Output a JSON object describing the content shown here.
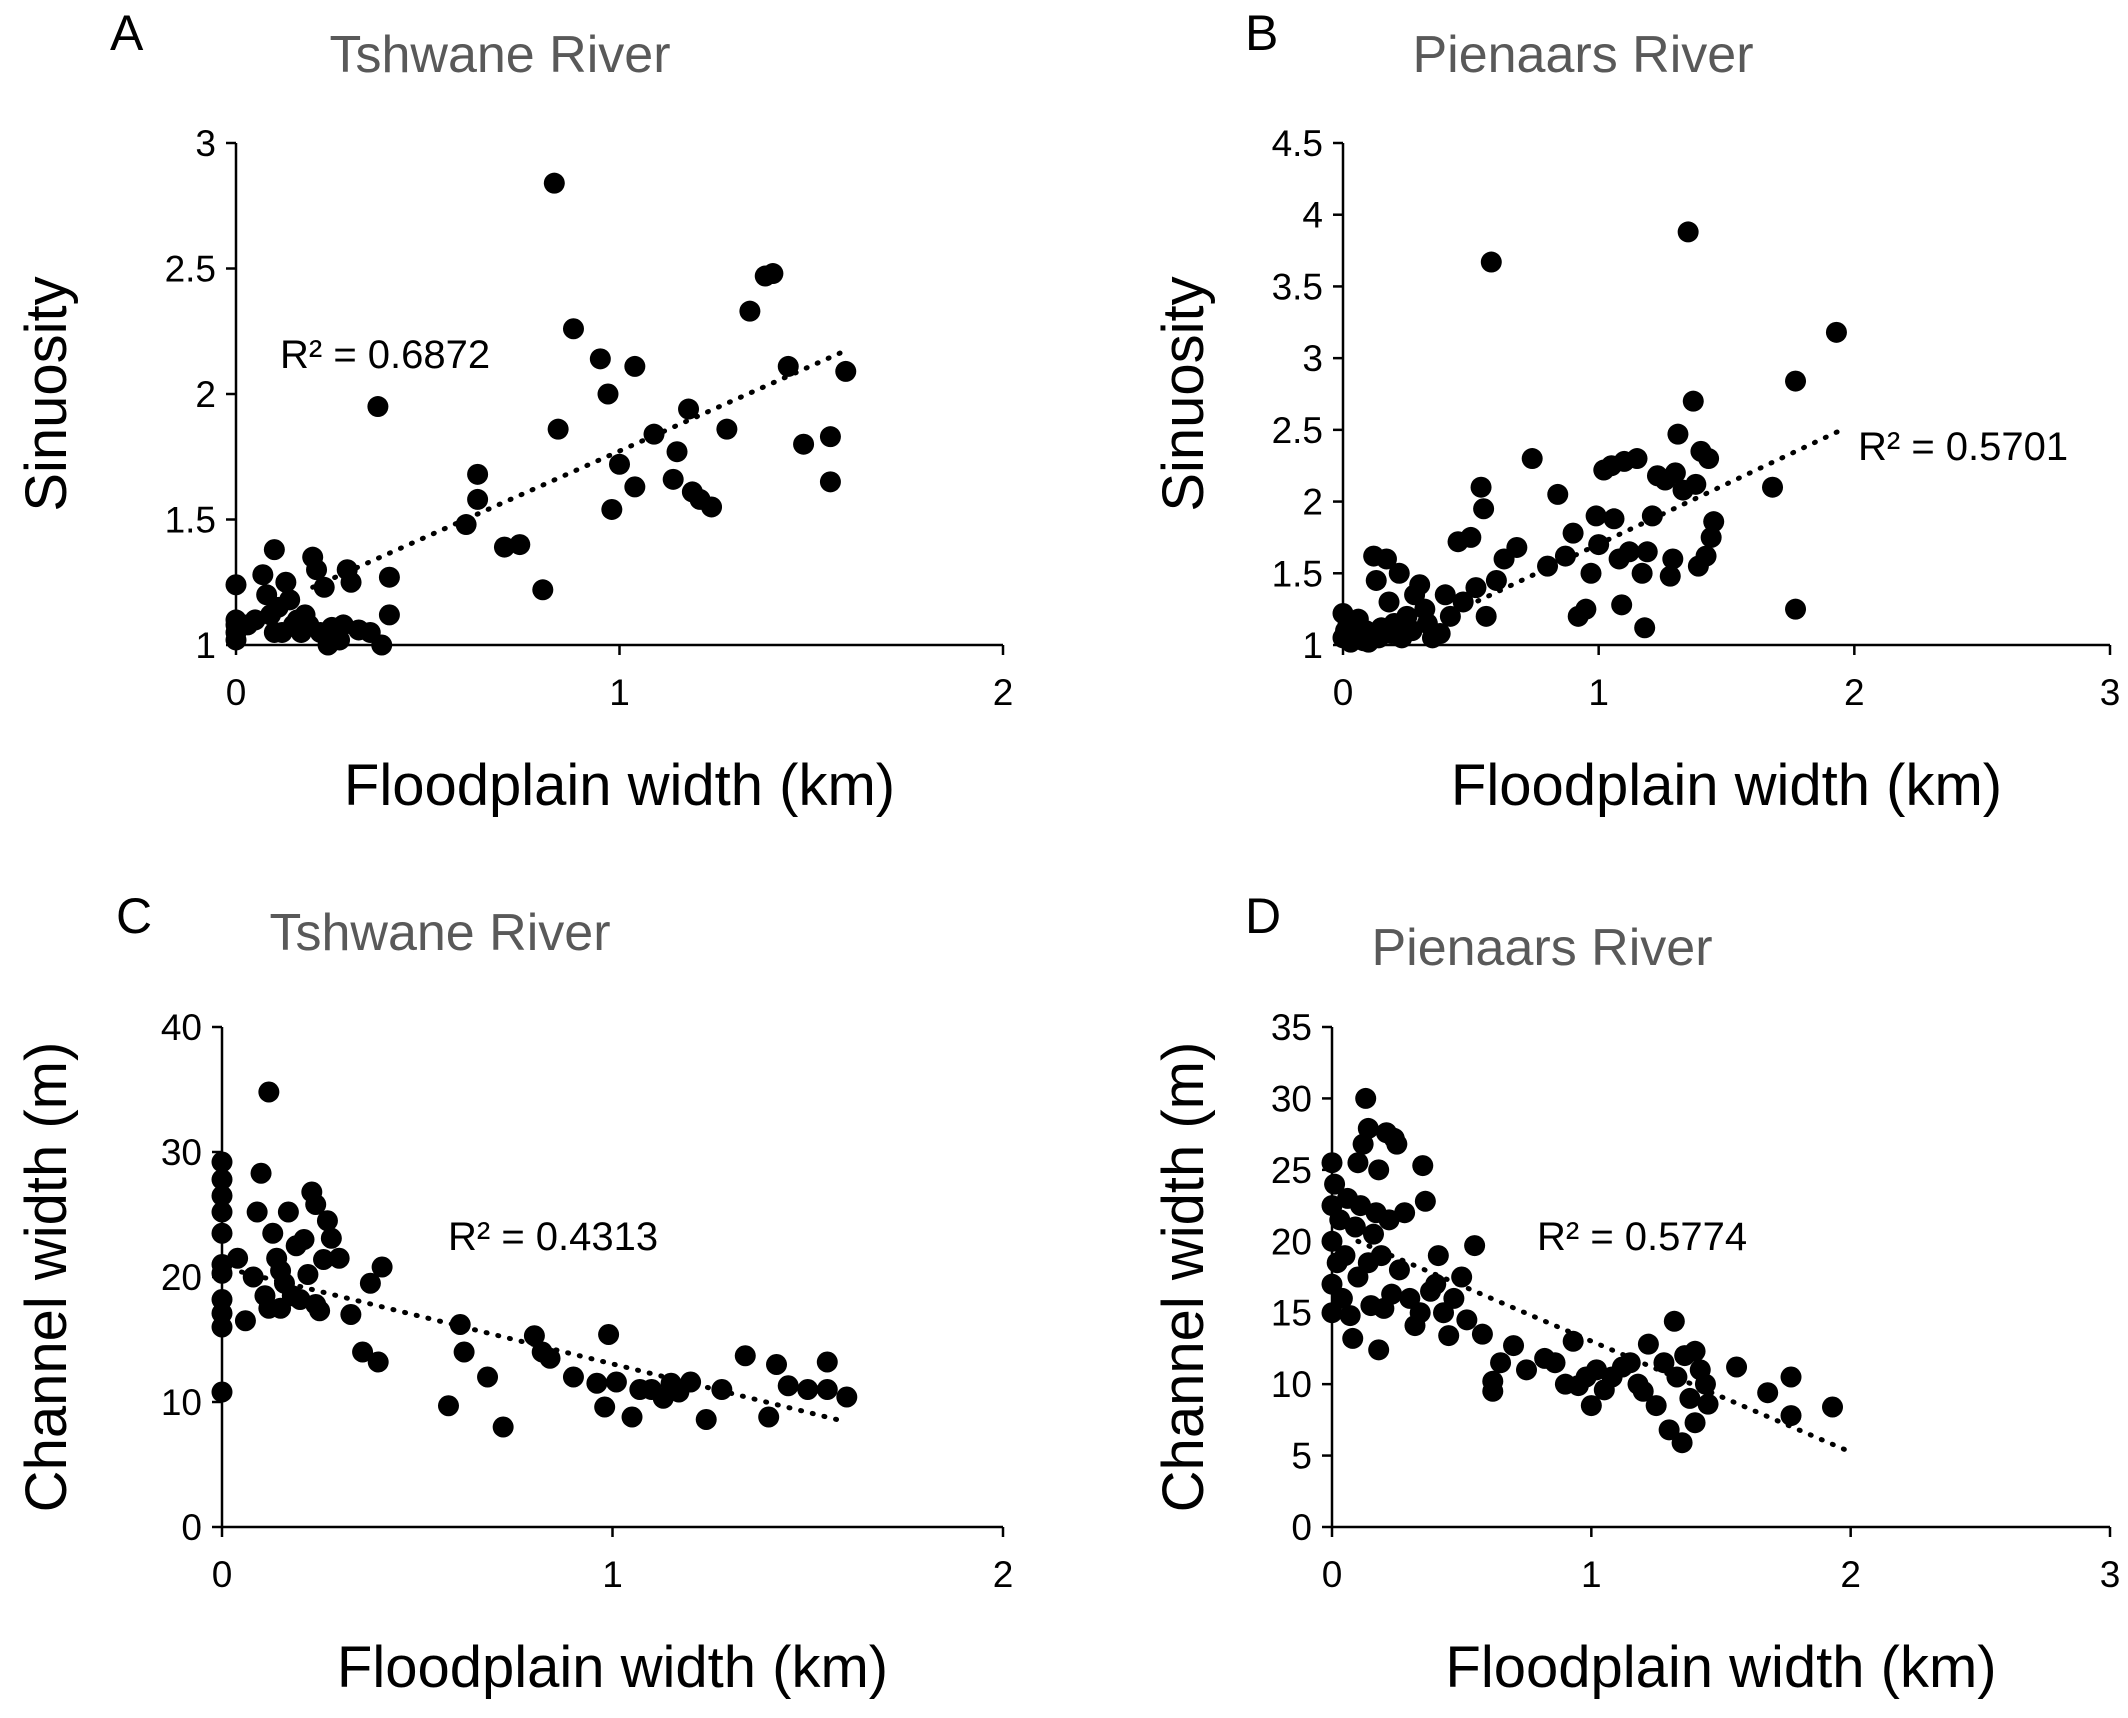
{
  "chart_data": [
    {
      "type": "scatter",
      "panel_label": "A",
      "title": "Tshwane River",
      "xlabel": "Floodplain width (km)",
      "ylabel": "Sinuosity",
      "xlim": [
        0,
        2
      ],
      "ylim": [
        1,
        3
      ],
      "xticks": [
        "0",
        "1",
        "2"
      ],
      "yticks": [
        "1",
        "1.5",
        "2",
        "2.5",
        "3"
      ],
      "grid": false,
      "legend": "none",
      "annotation": "R² = 0.6872",
      "trendline": {
        "style": "dotted",
        "x": [
          0.2,
          1.6
        ],
        "y": [
          1.23,
          2.18
        ]
      },
      "points": [
        [
          0.0,
          1.24
        ],
        [
          0.0,
          1.1
        ],
        [
          0.0,
          1.05
        ],
        [
          0.0,
          1.02
        ],
        [
          0.0,
          1.08
        ],
        [
          0.03,
          1.08
        ],
        [
          0.05,
          1.1
        ],
        [
          0.07,
          1.28
        ],
        [
          0.08,
          1.2
        ],
        [
          0.09,
          1.12
        ],
        [
          0.1,
          1.05
        ],
        [
          0.1,
          1.38
        ],
        [
          0.11,
          1.15
        ],
        [
          0.12,
          1.05
        ],
        [
          0.13,
          1.25
        ],
        [
          0.14,
          1.18
        ],
        [
          0.15,
          1.08
        ],
        [
          0.16,
          1.1
        ],
        [
          0.17,
          1.05
        ],
        [
          0.18,
          1.12
        ],
        [
          0.19,
          1.08
        ],
        [
          0.2,
          1.35
        ],
        [
          0.21,
          1.3
        ],
        [
          0.22,
          1.05
        ],
        [
          0.23,
          1.23
        ],
        [
          0.24,
          1.0
        ],
        [
          0.25,
          1.07
        ],
        [
          0.26,
          1.05
        ],
        [
          0.27,
          1.02
        ],
        [
          0.28,
          1.08
        ],
        [
          0.29,
          1.3
        ],
        [
          0.3,
          1.25
        ],
        [
          0.32,
          1.06
        ],
        [
          0.35,
          1.05
        ],
        [
          0.37,
          1.95
        ],
        [
          0.38,
          1.0
        ],
        [
          0.4,
          1.27
        ],
        [
          0.4,
          1.12
        ],
        [
          0.6,
          1.48
        ],
        [
          0.63,
          1.58
        ],
        [
          0.63,
          1.68
        ],
        [
          0.7,
          1.39
        ],
        [
          0.74,
          1.4
        ],
        [
          0.8,
          1.22
        ],
        [
          0.83,
          2.84
        ],
        [
          0.84,
          1.86
        ],
        [
          0.88,
          2.26
        ],
        [
          0.95,
          2.14
        ],
        [
          0.97,
          2.0
        ],
        [
          0.98,
          1.54
        ],
        [
          1.0,
          1.72
        ],
        [
          1.04,
          2.11
        ],
        [
          1.04,
          1.63
        ],
        [
          1.09,
          1.84
        ],
        [
          1.14,
          1.66
        ],
        [
          1.15,
          1.77
        ],
        [
          1.18,
          1.94
        ],
        [
          1.19,
          1.61
        ],
        [
          1.21,
          1.58
        ],
        [
          1.24,
          1.55
        ],
        [
          1.28,
          1.86
        ],
        [
          1.34,
          2.33
        ],
        [
          1.38,
          2.47
        ],
        [
          1.4,
          2.48
        ],
        [
          1.44,
          2.11
        ],
        [
          1.48,
          1.8
        ],
        [
          1.55,
          1.83
        ],
        [
          1.55,
          1.65
        ],
        [
          1.59,
          2.09
        ]
      ]
    },
    {
      "type": "scatter",
      "panel_label": "B",
      "title": "Pienaars River",
      "xlabel": "Floodplain width (km)",
      "ylabel": "Sinuosity",
      "xlim": [
        0,
        3
      ],
      "ylim": [
        1,
        4.5
      ],
      "xticks": [
        "0",
        "1",
        "2",
        "3"
      ],
      "yticks": [
        "1",
        "1.5",
        "2",
        "2.5",
        "3",
        "3.5",
        "4",
        "4.5"
      ],
      "grid": false,
      "legend": "none",
      "annotation": "R² = 0.5701",
      "trendline": {
        "style": "dotted",
        "x": [
          0.4,
          1.95
        ],
        "y": [
          1.2,
          2.5
        ]
      },
      "points": [
        [
          0.0,
          1.22
        ],
        [
          0.0,
          1.05
        ],
        [
          0.01,
          1.1
        ],
        [
          0.02,
          1.15
        ],
        [
          0.03,
          1.02
        ],
        [
          0.04,
          1.08
        ],
        [
          0.05,
          1.12
        ],
        [
          0.06,
          1.18
        ],
        [
          0.07,
          1.05
        ],
        [
          0.08,
          1.03
        ],
        [
          0.09,
          1.1
        ],
        [
          0.1,
          1.02
        ],
        [
          0.11,
          1.08
        ],
        [
          0.12,
          1.62
        ],
        [
          0.13,
          1.45
        ],
        [
          0.14,
          1.05
        ],
        [
          0.15,
          1.12
        ],
        [
          0.17,
          1.6
        ],
        [
          0.18,
          1.3
        ],
        [
          0.19,
          1.08
        ],
        [
          0.2,
          1.15
        ],
        [
          0.22,
          1.5
        ],
        [
          0.23,
          1.05
        ],
        [
          0.25,
          1.2
        ],
        [
          0.27,
          1.1
        ],
        [
          0.28,
          1.35
        ],
        [
          0.3,
          1.42
        ],
        [
          0.32,
          1.25
        ],
        [
          0.33,
          1.15
        ],
        [
          0.35,
          1.05
        ],
        [
          0.38,
          1.08
        ],
        [
          0.4,
          1.35
        ],
        [
          0.42,
          1.2
        ],
        [
          0.45,
          1.72
        ],
        [
          0.47,
          1.3
        ],
        [
          0.5,
          1.75
        ],
        [
          0.52,
          1.4
        ],
        [
          0.54,
          2.1
        ],
        [
          0.55,
          1.95
        ],
        [
          0.56,
          1.2
        ],
        [
          0.58,
          3.67
        ],
        [
          0.6,
          1.45
        ],
        [
          0.63,
          1.6
        ],
        [
          0.68,
          1.68
        ],
        [
          0.74,
          2.3
        ],
        [
          0.8,
          1.55
        ],
        [
          0.84,
          2.05
        ],
        [
          0.87,
          1.62
        ],
        [
          0.9,
          1.78
        ],
        [
          0.92,
          1.2
        ],
        [
          0.95,
          1.25
        ],
        [
          0.97,
          1.5
        ],
        [
          0.99,
          1.9
        ],
        [
          1.0,
          1.7
        ],
        [
          1.02,
          2.22
        ],
        [
          1.05,
          2.25
        ],
        [
          1.06,
          1.88
        ],
        [
          1.08,
          1.6
        ],
        [
          1.09,
          1.28
        ],
        [
          1.1,
          2.28
        ],
        [
          1.12,
          1.65
        ],
        [
          1.15,
          2.3
        ],
        [
          1.17,
          1.5
        ],
        [
          1.18,
          1.12
        ],
        [
          1.19,
          1.65
        ],
        [
          1.21,
          1.9
        ],
        [
          1.23,
          2.18
        ],
        [
          1.26,
          2.15
        ],
        [
          1.28,
          1.48
        ],
        [
          1.29,
          1.6
        ],
        [
          1.3,
          2.2
        ],
        [
          1.31,
          2.47
        ],
        [
          1.33,
          2.08
        ],
        [
          1.35,
          3.88
        ],
        [
          1.37,
          2.7
        ],
        [
          1.38,
          2.12
        ],
        [
          1.39,
          1.55
        ],
        [
          1.4,
          2.35
        ],
        [
          1.42,
          1.62
        ],
        [
          1.43,
          2.3
        ],
        [
          1.44,
          1.75
        ],
        [
          1.45,
          1.86
        ],
        [
          1.68,
          2.1
        ],
        [
          1.77,
          2.84
        ],
        [
          1.77,
          1.25
        ],
        [
          1.93,
          3.18
        ]
      ]
    },
    {
      "type": "scatter",
      "panel_label": "C",
      "title": "Tshwane River",
      "xlabel": "Floodplain width (km)",
      "ylabel": "Channel width (m)",
      "xlim": [
        0,
        2
      ],
      "ylim": [
        0,
        40
      ],
      "xticks": [
        "0",
        "1",
        "2"
      ],
      "yticks": [
        "0",
        "10",
        "20",
        "30",
        "40"
      ],
      "grid": false,
      "legend": "none",
      "annotation": "R² = 0.4313",
      "trendline": {
        "style": "dotted",
        "x": [
          0.05,
          1.6
        ],
        "y": [
          20.4,
          8.4
        ]
      },
      "points": [
        [
          0.0,
          29.2
        ],
        [
          0.0,
          27.8
        ],
        [
          0.0,
          26.5
        ],
        [
          0.0,
          25.2
        ],
        [
          0.0,
          23.5
        ],
        [
          0.0,
          21.0
        ],
        [
          0.0,
          20.3
        ],
        [
          0.0,
          18.2
        ],
        [
          0.0,
          17.1
        ],
        [
          0.0,
          16.0
        ],
        [
          0.0,
          10.8
        ],
        [
          0.04,
          21.5
        ],
        [
          0.06,
          16.5
        ],
        [
          0.08,
          20.0
        ],
        [
          0.09,
          25.2
        ],
        [
          0.1,
          28.3
        ],
        [
          0.11,
          18.5
        ],
        [
          0.12,
          17.5
        ],
        [
          0.12,
          34.8
        ],
        [
          0.13,
          23.5
        ],
        [
          0.14,
          21.5
        ],
        [
          0.15,
          17.5
        ],
        [
          0.15,
          20.5
        ],
        [
          0.16,
          19.5
        ],
        [
          0.17,
          25.2
        ],
        [
          0.18,
          18.5
        ],
        [
          0.19,
          22.5
        ],
        [
          0.2,
          18.2
        ],
        [
          0.21,
          23.0
        ],
        [
          0.22,
          20.2
        ],
        [
          0.23,
          26.8
        ],
        [
          0.24,
          17.8
        ],
        [
          0.24,
          25.8
        ],
        [
          0.25,
          17.3
        ],
        [
          0.26,
          21.4
        ],
        [
          0.27,
          24.5
        ],
        [
          0.28,
          23.1
        ],
        [
          0.3,
          21.5
        ],
        [
          0.33,
          17.0
        ],
        [
          0.36,
          14.0
        ],
        [
          0.38,
          19.5
        ],
        [
          0.4,
          13.2
        ],
        [
          0.41,
          20.8
        ],
        [
          0.58,
          9.7
        ],
        [
          0.61,
          16.2
        ],
        [
          0.62,
          14.0
        ],
        [
          0.68,
          12.0
        ],
        [
          0.72,
          8.0
        ],
        [
          0.8,
          15.3
        ],
        [
          0.82,
          14.0
        ],
        [
          0.84,
          13.5
        ],
        [
          0.9,
          12.0
        ],
        [
          0.96,
          11.5
        ],
        [
          0.98,
          9.6
        ],
        [
          0.99,
          15.4
        ],
        [
          1.01,
          11.6
        ],
        [
          1.05,
          8.8
        ],
        [
          1.07,
          11.0
        ],
        [
          1.1,
          11.0
        ],
        [
          1.13,
          10.3
        ],
        [
          1.15,
          11.5
        ],
        [
          1.17,
          10.8
        ],
        [
          1.2,
          11.6
        ],
        [
          1.24,
          8.6
        ],
        [
          1.28,
          11.0
        ],
        [
          1.34,
          13.7
        ],
        [
          1.4,
          8.8
        ],
        [
          1.42,
          13.0
        ],
        [
          1.45,
          11.3
        ],
        [
          1.5,
          11.0
        ],
        [
          1.55,
          13.2
        ],
        [
          1.55,
          11.0
        ],
        [
          1.6,
          10.4
        ]
      ]
    },
    {
      "type": "scatter",
      "panel_label": "D",
      "title": "Pienaars River",
      "xlabel": "Floodplain width (km)",
      "ylabel": "Channel width (m)",
      "xlim": [
        0,
        3
      ],
      "ylim": [
        0,
        35
      ],
      "xticks": [
        "0",
        "1",
        "2",
        "3"
      ],
      "yticks": [
        "0",
        "5",
        "10",
        "15",
        "20",
        "25",
        "30",
        "35"
      ],
      "grid": false,
      "legend": "none",
      "annotation": "R² = 0.5774",
      "trendline": {
        "style": "dotted",
        "x": [
          0.1,
          1.98
        ],
        "y": [
          20.0,
          5.4
        ]
      },
      "points": [
        [
          0.0,
          25.5
        ],
        [
          0.0,
          22.5
        ],
        [
          0.0,
          20.0
        ],
        [
          0.0,
          17.0
        ],
        [
          0.0,
          15.0
        ],
        [
          0.01,
          24.0
        ],
        [
          0.02,
          18.5
        ],
        [
          0.03,
          21.5
        ],
        [
          0.04,
          16.0
        ],
        [
          0.05,
          19.0
        ],
        [
          0.06,
          23.0
        ],
        [
          0.07,
          14.8
        ],
        [
          0.08,
          13.2
        ],
        [
          0.09,
          21.0
        ],
        [
          0.1,
          25.5
        ],
        [
          0.1,
          17.5
        ],
        [
          0.11,
          22.5
        ],
        [
          0.12,
          26.8
        ],
        [
          0.13,
          30.0
        ],
        [
          0.14,
          27.9
        ],
        [
          0.14,
          18.5
        ],
        [
          0.15,
          15.5
        ],
        [
          0.16,
          20.5
        ],
        [
          0.17,
          22.0
        ],
        [
          0.18,
          25.0
        ],
        [
          0.18,
          12.4
        ],
        [
          0.19,
          19.0
        ],
        [
          0.2,
          15.3
        ],
        [
          0.21,
          27.6
        ],
        [
          0.22,
          21.5
        ],
        [
          0.23,
          16.3
        ],
        [
          0.24,
          27.2
        ],
        [
          0.25,
          26.8
        ],
        [
          0.26,
          18.0
        ],
        [
          0.28,
          22.0
        ],
        [
          0.3,
          16.0
        ],
        [
          0.32,
          14.1
        ],
        [
          0.34,
          15.0
        ],
        [
          0.35,
          25.3
        ],
        [
          0.36,
          22.8
        ],
        [
          0.38,
          16.5
        ],
        [
          0.4,
          17.0
        ],
        [
          0.41,
          19.0
        ],
        [
          0.43,
          15.0
        ],
        [
          0.45,
          13.4
        ],
        [
          0.47,
          16.0
        ],
        [
          0.5,
          17.5
        ],
        [
          0.52,
          14.5
        ],
        [
          0.55,
          19.7
        ],
        [
          0.58,
          13.5
        ],
        [
          0.62,
          9.5
        ],
        [
          0.62,
          10.2
        ],
        [
          0.65,
          11.5
        ],
        [
          0.7,
          12.7
        ],
        [
          0.75,
          11.0
        ],
        [
          0.82,
          11.8
        ],
        [
          0.86,
          11.5
        ],
        [
          0.9,
          10.0
        ],
        [
          0.93,
          13.0
        ],
        [
          0.95,
          9.9
        ],
        [
          0.98,
          10.5
        ],
        [
          1.0,
          8.5
        ],
        [
          1.02,
          11.0
        ],
        [
          1.05,
          9.6
        ],
        [
          1.08,
          10.5
        ],
        [
          1.12,
          11.2
        ],
        [
          1.15,
          11.5
        ],
        [
          1.18,
          10.0
        ],
        [
          1.2,
          9.5
        ],
        [
          1.22,
          12.8
        ],
        [
          1.25,
          8.5
        ],
        [
          1.28,
          11.5
        ],
        [
          1.3,
          6.8
        ],
        [
          1.32,
          14.4
        ],
        [
          1.33,
          10.5
        ],
        [
          1.35,
          5.9
        ],
        [
          1.36,
          12.0
        ],
        [
          1.38,
          9.0
        ],
        [
          1.4,
          7.3
        ],
        [
          1.4,
          12.3
        ],
        [
          1.42,
          11.0
        ],
        [
          1.44,
          10.0
        ],
        [
          1.45,
          8.6
        ],
        [
          1.56,
          11.2
        ],
        [
          1.68,
          9.4
        ],
        [
          1.77,
          10.5
        ],
        [
          1.77,
          7.8
        ],
        [
          1.93,
          8.4
        ]
      ]
    }
  ]
}
